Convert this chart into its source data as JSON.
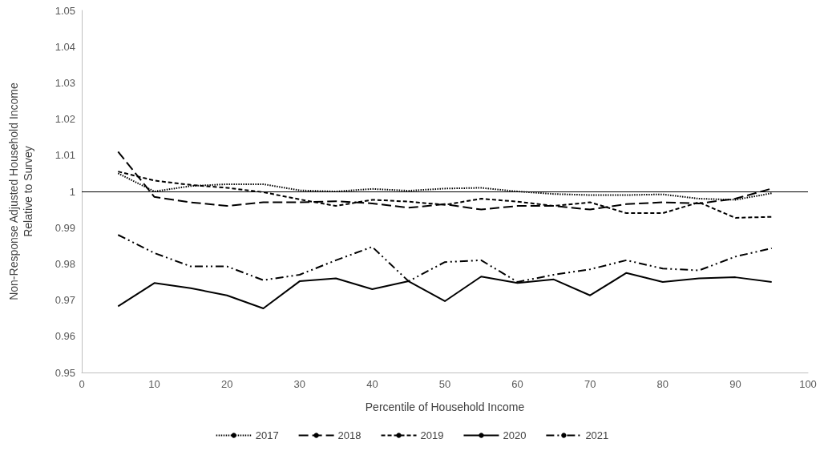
{
  "chart_data": {
    "type": "line",
    "xlabel": "Percentile of Household Income",
    "ylabel": "Non-Response Adjusted Household Income\nRelative to Survey",
    "x": [
      5,
      10,
      15,
      20,
      25,
      30,
      35,
      40,
      45,
      50,
      55,
      60,
      65,
      70,
      75,
      80,
      85,
      90,
      95
    ],
    "series": [
      {
        "name": "2017",
        "color": "#000000",
        "line_style": "dotted",
        "values": [
          1.005,
          1.0,
          1.0015,
          1.002,
          1.002,
          1.0003,
          1.0,
          1.0007,
          1.0002,
          1.0008,
          1.001,
          1.0,
          0.9993,
          0.999,
          0.999,
          0.9992,
          0.998,
          0.9977,
          0.9995
        ]
      },
      {
        "name": "2018",
        "color": "#000000",
        "line_style": "longdash",
        "values": [
          1.011,
          0.9985,
          0.997,
          0.996,
          0.997,
          0.997,
          0.9973,
          0.9967,
          0.9955,
          0.9965,
          0.995,
          0.996,
          0.996,
          0.995,
          0.9965,
          0.997,
          0.9967,
          0.998,
          1.0008
        ]
      },
      {
        "name": "2019",
        "color": "#000000",
        "line_style": "dashed",
        "values": [
          1.0055,
          1.003,
          1.0018,
          1.001,
          0.9998,
          0.9978,
          0.996,
          0.9977,
          0.9972,
          0.9963,
          0.998,
          0.9972,
          0.996,
          0.997,
          0.994,
          0.994,
          0.997,
          0.9927,
          0.993
        ]
      },
      {
        "name": "2020",
        "color": "#000000",
        "line_style": "solid",
        "values": [
          0.9683,
          0.9747,
          0.9733,
          0.9713,
          0.9677,
          0.9752,
          0.976,
          0.973,
          0.9752,
          0.9697,
          0.9765,
          0.9747,
          0.9757,
          0.9713,
          0.9775,
          0.975,
          0.976,
          0.9763,
          0.975
        ]
      },
      {
        "name": "2021",
        "color": "#000000",
        "line_style": "dashdot",
        "values": [
          0.988,
          0.983,
          0.9793,
          0.9793,
          0.9755,
          0.977,
          0.981,
          0.9847,
          0.9752,
          0.9805,
          0.981,
          0.975,
          0.977,
          0.9785,
          0.981,
          0.9787,
          0.9782,
          0.982,
          0.9843
        ]
      }
    ],
    "xlim": [
      0,
      100
    ],
    "xticks": [
      0,
      10,
      20,
      30,
      40,
      50,
      60,
      70,
      80,
      90,
      100
    ],
    "ylim": [
      0.95,
      1.05
    ],
    "yticks": [
      0.95,
      0.96,
      0.97,
      0.98,
      0.99,
      1,
      1.01,
      1.02,
      1.03,
      1.04,
      1.05
    ],
    "ref_lines": [
      {
        "axis": "y",
        "value": 1,
        "color": "#000000",
        "line_style": "solid"
      }
    ],
    "grid": false,
    "legend": "bottom",
    "marker": "none"
  }
}
